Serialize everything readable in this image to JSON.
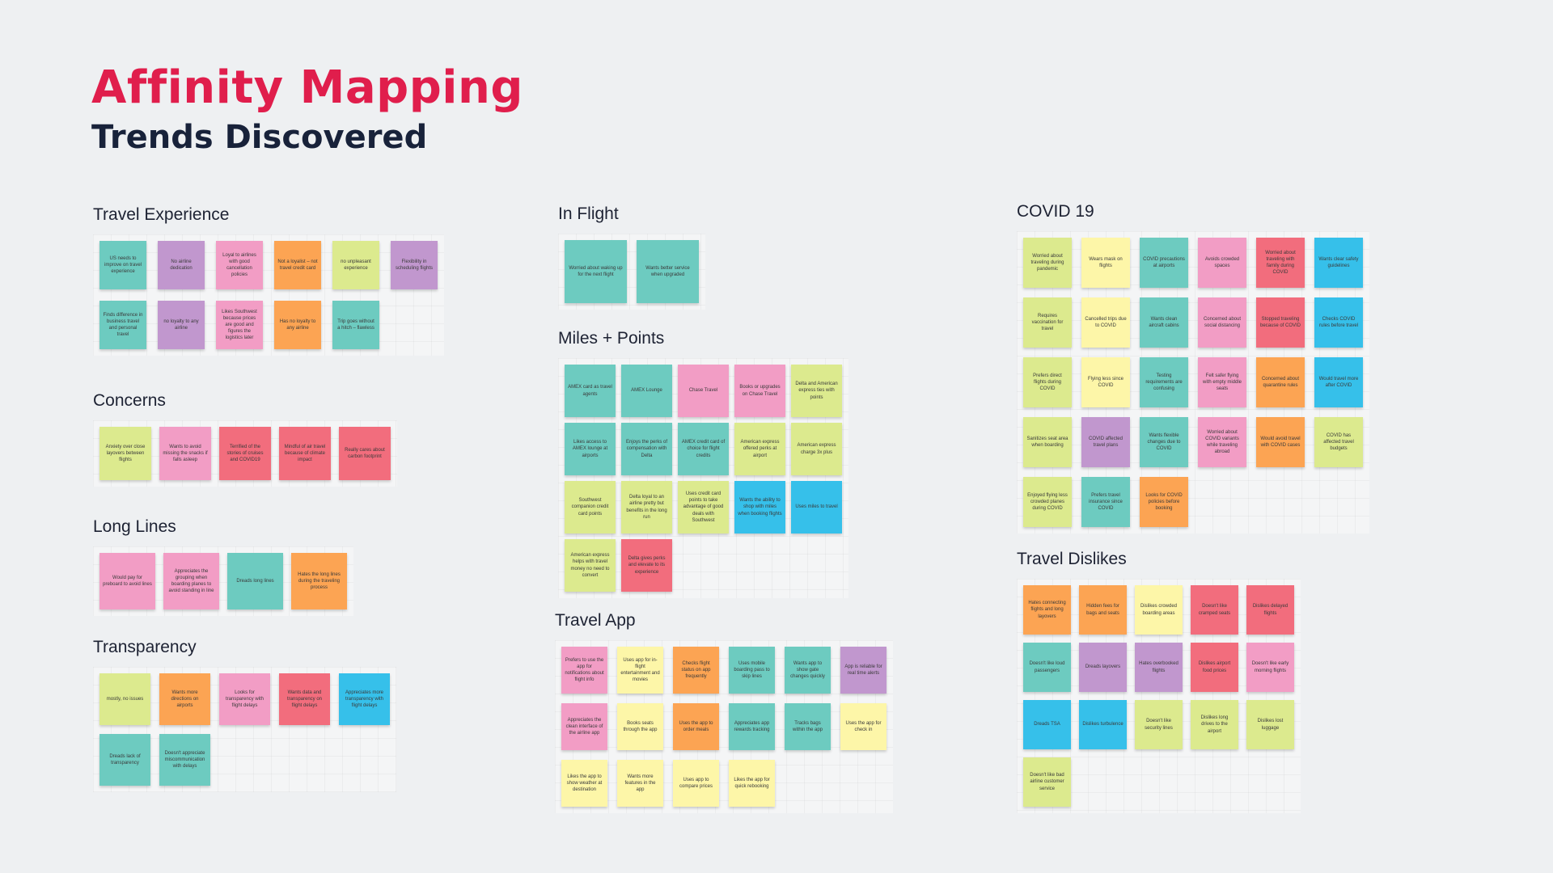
{
  "header": {
    "title": "Affinity Mapping",
    "subtitle": "Trends Discovered"
  },
  "colors": {
    "title": "#e01e4c",
    "subtitle": "#18223a",
    "teal": "#6dcbc0",
    "purple": "#c197ce",
    "pink": "#f29dc5",
    "orange": "#fca453",
    "lime": "#dcea8e",
    "yellow": "#fdf6a8",
    "red": "#f26d7d",
    "blue": "#36c0ea"
  },
  "groups": [
    {
      "id": "travel-experience",
      "title": "Travel Experience",
      "notes": [
        {
          "color": "teal",
          "text": "US needs to improve on travel experience"
        },
        {
          "color": "purple",
          "text": "No airline dedication"
        },
        {
          "color": "pink",
          "text": "Loyal to airlines with good cancellation policies"
        },
        {
          "color": "orange",
          "text": "Not a loyalist – not travel credit card"
        },
        {
          "color": "lime",
          "text": "no unpleasant experience"
        },
        {
          "color": "purple",
          "text": "Flexibility in scheduling flights"
        },
        {
          "color": "teal",
          "text": "Finds difference in business travel and personal travel"
        },
        {
          "color": "purple",
          "text": "no loyalty to any airline"
        },
        {
          "color": "pink",
          "text": "Likes Southwest because prices are good and figures the logistics later"
        },
        {
          "color": "orange",
          "text": "Has no loyalty to any airline"
        },
        {
          "color": "teal",
          "text": "Trip goes without a hitch – flawless"
        }
      ]
    },
    {
      "id": "concerns",
      "title": "Concerns",
      "notes": [
        {
          "color": "lime",
          "text": "Anxiety over close layovers between flights"
        },
        {
          "color": "pink",
          "text": "Wants to avoid missing the snacks if falls asleep"
        },
        {
          "color": "red",
          "text": "Terrified of the stories of cruises and COVID19"
        },
        {
          "color": "red",
          "text": "Mindful of air travel because of climate impact"
        },
        {
          "color": "red",
          "text": "Really cares about carbon footprint"
        }
      ]
    },
    {
      "id": "long-lines",
      "title": "Long Lines",
      "notes": [
        {
          "color": "pink",
          "text": "Would pay for preboard to avoid lines"
        },
        {
          "color": "pink",
          "text": "Appreciates the grouping when boarding planes to avoid standing in line"
        },
        {
          "color": "teal",
          "text": "Dreads long lines"
        },
        {
          "color": "orange",
          "text": "Hates the long lines during the traveling process"
        }
      ]
    },
    {
      "id": "transparency",
      "title": "Transparency",
      "notes": [
        {
          "color": "lime",
          "text": "mostly, no issues"
        },
        {
          "color": "orange",
          "text": "Wants more directions on airports"
        },
        {
          "color": "pink",
          "text": "Looks for transparency with flight delays"
        },
        {
          "color": "red",
          "text": "Wants data and transparency on flight delays"
        },
        {
          "color": "blue",
          "text": "Appreciates more transparency with flight delays"
        },
        {
          "color": "teal",
          "text": "Dreads lack of transparency"
        },
        {
          "color": "teal",
          "text": "Doesn't appreciate miscommunication with delays"
        }
      ]
    },
    {
      "id": "in-flight",
      "title": "In Flight",
      "notes": [
        {
          "color": "teal",
          "text": "Worried about waking up for the next flight"
        },
        {
          "color": "teal",
          "text": "Wants better service when upgraded"
        }
      ]
    },
    {
      "id": "miles-points",
      "title": "Miles + Points",
      "notes": [
        {
          "color": "teal",
          "text": "AMEX card as travel agents"
        },
        {
          "color": "teal",
          "text": "AMEX Lounge"
        },
        {
          "color": "pink",
          "text": "Chase Travel"
        },
        {
          "color": "pink",
          "text": "Books or upgrades on Chase Travel"
        },
        {
          "color": "lime",
          "text": "Delta and American express ties with points"
        },
        {
          "color": "teal",
          "text": "Likes access to AMEX lounge at airports"
        },
        {
          "color": "teal",
          "text": "Enjoys the perks of compensation with Delta"
        },
        {
          "color": "teal",
          "text": "AMEX credit card of choice for flight credits"
        },
        {
          "color": "lime",
          "text": "American express offered perks at airport"
        },
        {
          "color": "lime",
          "text": "American express charge 3x plus"
        },
        {
          "color": "lime",
          "text": "Southwest companion credit card points"
        },
        {
          "color": "lime",
          "text": "Delta loyal to an airline pretty but benefits in the long run"
        },
        {
          "color": "lime",
          "text": "Uses credit card points to take advantage of good deals with Southwest"
        },
        {
          "color": "blue",
          "text": "Wants the ability to shop with miles when booking flights"
        },
        {
          "color": "blue",
          "text": "Uses miles to travel"
        },
        {
          "color": "lime",
          "text": "American express helps with travel money no need to convert"
        },
        {
          "color": "red",
          "text": "Delta gives perks and elevate to its experience"
        }
      ]
    },
    {
      "id": "travel-app",
      "title": "Travel App",
      "notes": [
        {
          "color": "pink",
          "text": "Prefers to use the app for notifications about flight info"
        },
        {
          "color": "yellow",
          "text": "Uses app for in-flight entertainment and movies"
        },
        {
          "color": "orange",
          "text": "Checks flight status on app frequently"
        },
        {
          "color": "teal",
          "text": "Uses mobile boarding pass to skip lines"
        },
        {
          "color": "teal",
          "text": "Wants app to show gate changes quickly"
        },
        {
          "color": "purple",
          "text": "App is reliable for real time alerts"
        },
        {
          "color": "pink",
          "text": "Appreciates the clean interface of the airline app"
        },
        {
          "color": "yellow",
          "text": "Books seats through the app"
        },
        {
          "color": "orange",
          "text": "Uses the app to order meals"
        },
        {
          "color": "teal",
          "text": "Appreciates app rewards tracking"
        },
        {
          "color": "teal",
          "text": "Tracks bags within the app"
        },
        {
          "color": "yellow",
          "text": "Uses the app for check in"
        },
        {
          "color": "yellow",
          "text": "Likes the app to show weather at destination"
        },
        {
          "color": "yellow",
          "text": "Wants more features in the app"
        },
        {
          "color": "yellow",
          "text": "Uses app to compare prices"
        },
        {
          "color": "yellow",
          "text": "Likes the app for quick rebooking"
        }
      ]
    },
    {
      "id": "covid-19",
      "title": "COVID 19",
      "notes": [
        {
          "color": "lime",
          "text": "Worried about traveling during pandemic"
        },
        {
          "color": "yellow",
          "text": "Wears mask on flights"
        },
        {
          "color": "teal",
          "text": "COVID precautions at airports"
        },
        {
          "color": "pink",
          "text": "Avoids crowded spaces"
        },
        {
          "color": "red",
          "text": "Worried about traveling with family during COVID"
        },
        {
          "color": "blue",
          "text": "Wants clear safety guidelines"
        },
        {
          "color": "lime",
          "text": "Requires vaccination for travel"
        },
        {
          "color": "yellow",
          "text": "Cancelled trips due to COVID"
        },
        {
          "color": "teal",
          "text": "Wants clean aircraft cabins"
        },
        {
          "color": "pink",
          "text": "Concerned about social distancing"
        },
        {
          "color": "red",
          "text": "Stopped traveling because of COVID"
        },
        {
          "color": "blue",
          "text": "Checks COVID rules before travel"
        },
        {
          "color": "lime",
          "text": "Prefers direct flights during COVID"
        },
        {
          "color": "yellow",
          "text": "Flying less since COVID"
        },
        {
          "color": "teal",
          "text": "Testing requirements are confusing"
        },
        {
          "color": "pink",
          "text": "Felt safer flying with empty middle seats"
        },
        {
          "color": "orange",
          "text": "Concerned about quarantine rules"
        },
        {
          "color": "blue",
          "text": "Would travel more after COVID"
        },
        {
          "color": "lime",
          "text": "Sanitizes seat area when boarding"
        },
        {
          "color": "purple",
          "text": "COVID affected travel plans"
        },
        {
          "color": "teal",
          "text": "Wants flexible changes due to COVID"
        },
        {
          "color": "pink",
          "text": "Worried about COVID variants while traveling abroad"
        },
        {
          "color": "orange",
          "text": "Would avoid travel with COVID cases"
        },
        {
          "color": "lime",
          "text": "COVID has affected travel budgets"
        },
        {
          "color": "lime",
          "text": "Enjoyed flying less crowded planes during COVID"
        },
        {
          "color": "teal",
          "text": "Prefers travel insurance since COVID"
        },
        {
          "color": "orange",
          "text": "Looks for COVID policies before booking"
        }
      ]
    },
    {
      "id": "travel-dislikes",
      "title": "Travel Dislikes",
      "notes": [
        {
          "color": "orange",
          "text": "Hates connecting flights and long layovers"
        },
        {
          "color": "orange",
          "text": "Hidden fees for bags and seats"
        },
        {
          "color": "yellow",
          "text": "Dislikes crowded boarding areas"
        },
        {
          "color": "red",
          "text": "Doesn't like cramped seats"
        },
        {
          "color": "red",
          "text": "Dislikes delayed flights"
        },
        {
          "color": "teal",
          "text": "Doesn't like loud passengers"
        },
        {
          "color": "purple",
          "text": "Dreads layovers"
        },
        {
          "color": "purple",
          "text": "Hates overbooked flights"
        },
        {
          "color": "red",
          "text": "Dislikes airport food prices"
        },
        {
          "color": "pink",
          "text": "Doesn't like early morning flights"
        },
        {
          "color": "blue",
          "text": "Dreads TSA"
        },
        {
          "color": "blue",
          "text": "Dislikes turbulence"
        },
        {
          "color": "lime",
          "text": "Doesn't like security lines"
        },
        {
          "color": "lime",
          "text": "Dislikes long drives to the airport"
        },
        {
          "color": "lime",
          "text": "Dislikes lost luggage"
        },
        {
          "color": "lime",
          "text": "Doesn't like bad airline customer service"
        }
      ]
    }
  ]
}
